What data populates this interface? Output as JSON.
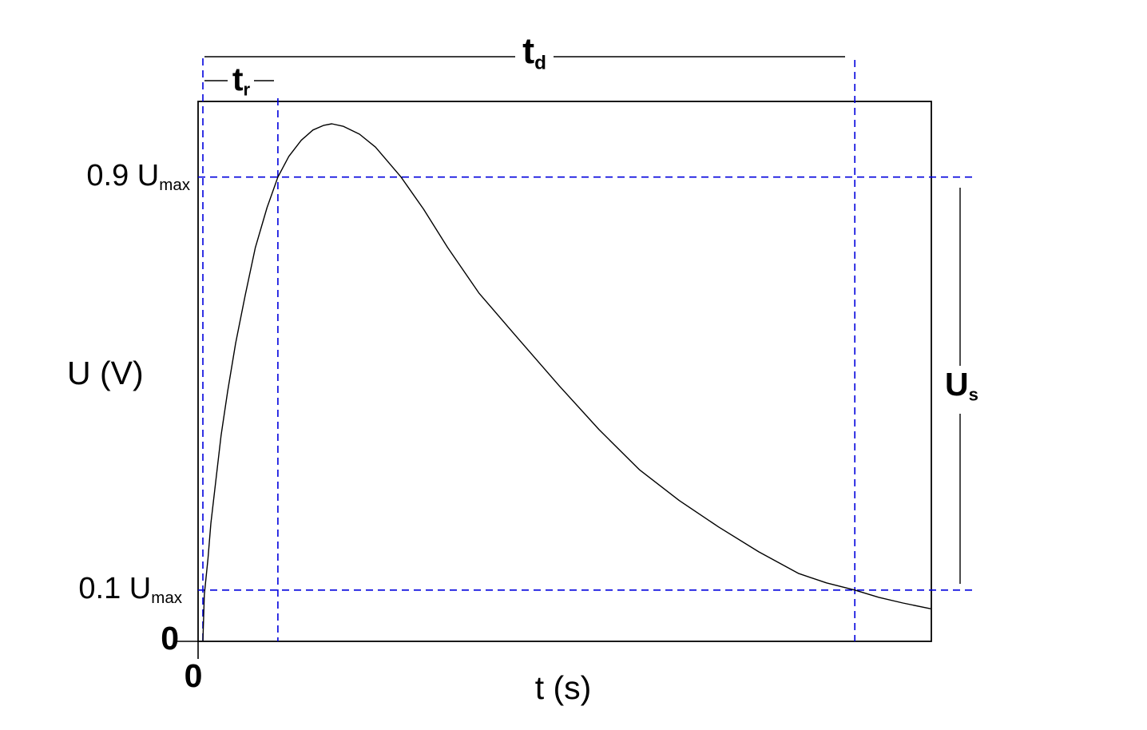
{
  "figure": {
    "type": "voltage-pulse-waveform-diagram",
    "background": "#ffffff",
    "colors": {
      "curve": "#000000",
      "frame": "#000000",
      "guides": "#0000dd",
      "text": "#000000"
    }
  },
  "labels": {
    "y_axis": "U (V)",
    "x_axis": "t (s)",
    "y_origin": "0",
    "x_origin": "0",
    "level_high": {
      "main": "0.9 U",
      "sub": "max"
    },
    "level_low": {
      "main": "0.1 U",
      "sub": "max"
    },
    "duration": {
      "main": "t",
      "sub": "d"
    },
    "rise_time": {
      "main": "t",
      "sub": "r"
    },
    "amplitude": {
      "main": "U",
      "sub": "s"
    }
  },
  "chart_data": {
    "type": "line",
    "title": "",
    "xlabel": "t (s)",
    "ylabel": "U (V)",
    "x_tick_labels": [
      "0"
    ],
    "y_tick_labels": [
      "0"
    ],
    "grid": false,
    "axes_note": "no numeric scale shown; t given as fraction of plotted time window, u as fraction of Umax (curve peak)",
    "reference_levels": [
      {
        "key": "high",
        "label": "0.9 Umax",
        "u": 0.897
      },
      {
        "key": "low",
        "label": "0.1 Umax",
        "u": 0.099
      }
    ],
    "time_markers": [
      {
        "key": "start",
        "label": "pulse start (t=0)",
        "t": 0.0
      },
      {
        "key": "rise-end",
        "label": "0.9 Umax crossing on rise",
        "t": 0.103
      },
      {
        "key": "duration-end",
        "label": "0.1 Umax crossing on decay",
        "t": 0.895
      }
    ],
    "intervals": [
      {
        "key": "tr",
        "label": "t_r (rise time)",
        "from_t": 0.0,
        "to_t": 0.103
      },
      {
        "key": "td",
        "label": "t_d (pulse duration)",
        "from_t": 0.0,
        "to_t": 0.895
      }
    ],
    "amplitude_marker": {
      "key": "us",
      "label": "U_s",
      "from_u": 0.099,
      "to_u": 0.897
    },
    "series": [
      {
        "name": "U(t) voltage pulse",
        "points_t_u": [
          [
            0.0,
            0.0
          ],
          [
            0.002,
            0.09
          ],
          [
            0.007,
            0.16
          ],
          [
            0.011,
            0.228
          ],
          [
            0.018,
            0.313
          ],
          [
            0.025,
            0.398
          ],
          [
            0.034,
            0.483
          ],
          [
            0.045,
            0.576
          ],
          [
            0.058,
            0.668
          ],
          [
            0.072,
            0.761
          ],
          [
            0.088,
            0.838
          ],
          [
            0.103,
            0.897
          ],
          [
            0.118,
            0.937
          ],
          [
            0.135,
            0.968
          ],
          [
            0.151,
            0.988
          ],
          [
            0.166,
            0.997
          ],
          [
            0.177,
            1.0
          ],
          [
            0.193,
            0.995
          ],
          [
            0.215,
            0.98
          ],
          [
            0.237,
            0.955
          ],
          [
            0.272,
            0.897
          ],
          [
            0.303,
            0.835
          ],
          [
            0.336,
            0.761
          ],
          [
            0.379,
            0.673
          ],
          [
            0.434,
            0.583
          ],
          [
            0.489,
            0.494
          ],
          [
            0.544,
            0.409
          ],
          [
            0.599,
            0.332
          ],
          [
            0.654,
            0.272
          ],
          [
            0.708,
            0.221
          ],
          [
            0.763,
            0.173
          ],
          [
            0.818,
            0.131
          ],
          [
            0.856,
            0.113
          ],
          [
            0.895,
            0.099
          ],
          [
            0.928,
            0.085
          ],
          [
            0.961,
            0.074
          ],
          [
            0.999,
            0.063
          ]
        ]
      }
    ]
  }
}
